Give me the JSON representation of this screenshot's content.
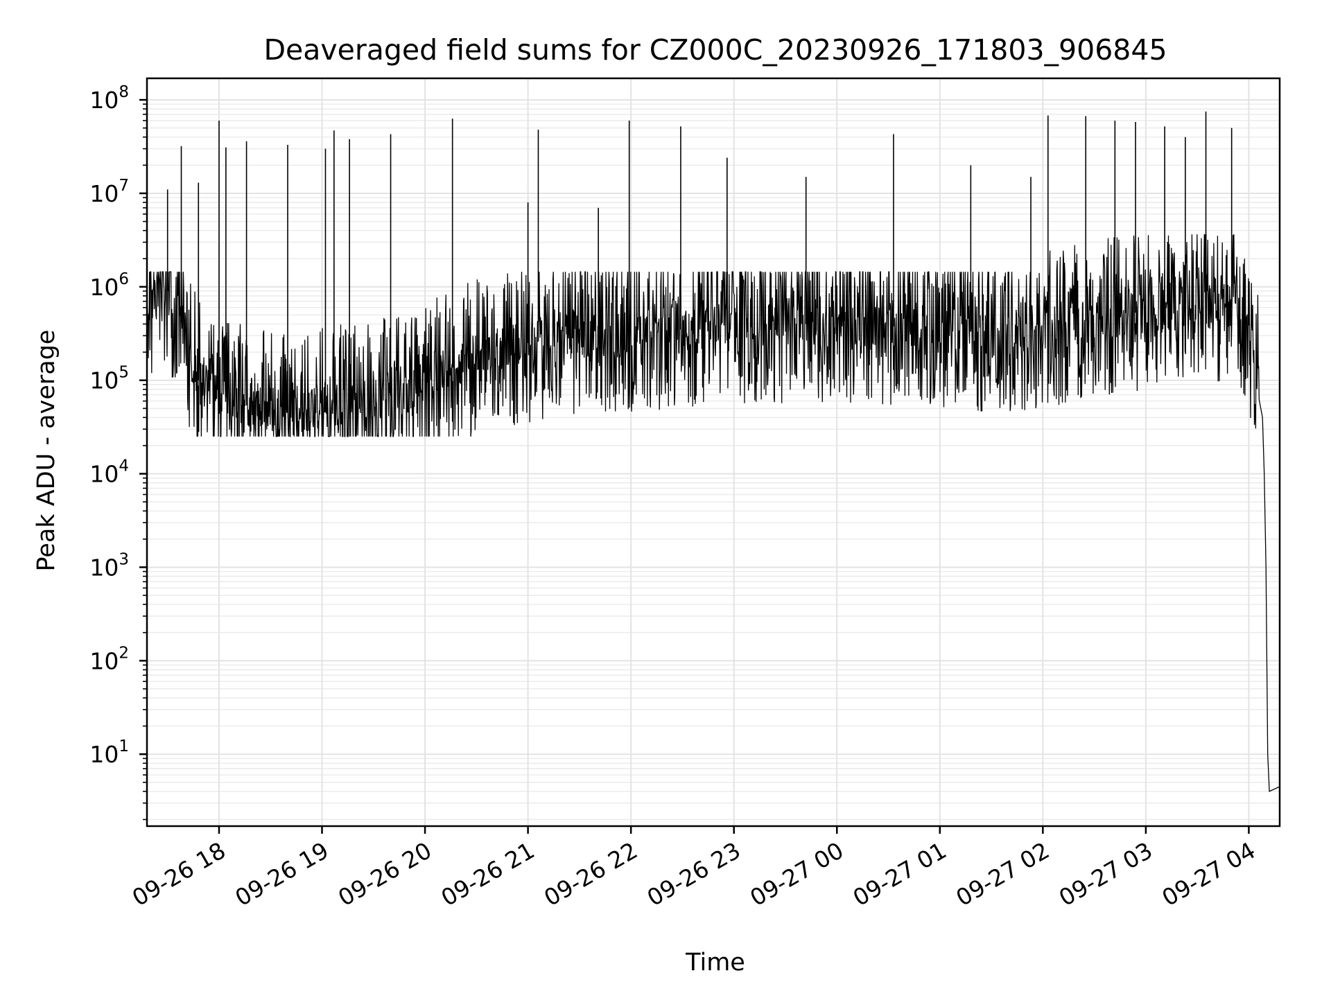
{
  "chart_data": {
    "type": "line",
    "title": "Deaveraged field sums for CZ000C_20230926_171803_906845",
    "xlabel": "Time",
    "ylabel": "Peak ADU - average",
    "yscale": "log",
    "grid": true,
    "xlim": [
      "2023-09-26 17:18",
      "2023-09-27 04:18"
    ],
    "ylim": [
      1.7,
      170000000
    ],
    "x_ticks": [
      {
        "value": "2023-09-26 18:00",
        "label": "09-26 18"
      },
      {
        "value": "2023-09-26 19:00",
        "label": "09-26 19"
      },
      {
        "value": "2023-09-26 20:00",
        "label": "09-26 20"
      },
      {
        "value": "2023-09-26 21:00",
        "label": "09-26 21"
      },
      {
        "value": "2023-09-26 22:00",
        "label": "09-26 22"
      },
      {
        "value": "2023-09-26 23:00",
        "label": "09-26 23"
      },
      {
        "value": "2023-09-27 00:00",
        "label": "09-27 00"
      },
      {
        "value": "2023-09-27 01:00",
        "label": "09-27 01"
      },
      {
        "value": "2023-09-27 02:00",
        "label": "09-27 02"
      },
      {
        "value": "2023-09-27 03:00",
        "label": "09-27 03"
      },
      {
        "value": "2023-09-27 04:00",
        "label": "09-27 04"
      }
    ],
    "y_ticks": [
      {
        "value": 10,
        "base": "10",
        "exp": "1"
      },
      {
        "value": 100,
        "base": "10",
        "exp": "2"
      },
      {
        "value": 1000,
        "base": "10",
        "exp": "3"
      },
      {
        "value": 10000,
        "base": "10",
        "exp": "4"
      },
      {
        "value": 100000,
        "base": "10",
        "exp": "5"
      },
      {
        "value": 1000000,
        "base": "10",
        "exp": "6"
      },
      {
        "value": 10000000,
        "base": "10",
        "exp": "7"
      },
      {
        "value": 100000000,
        "base": "10",
        "exp": "8"
      }
    ],
    "series": [
      {
        "color": "#000000",
        "points": [
          [
            "2023-09-26 17:18",
            500000
          ],
          [
            "2023-09-26 17:24",
            800000
          ],
          [
            "2023-09-26 17:30",
            900000
          ],
          [
            "2023-09-26 17:36",
            600000
          ],
          [
            "2023-09-26 17:42",
            200000
          ],
          [
            "2023-09-26 17:48",
            100000
          ],
          [
            "2023-09-26 17:54",
            80000
          ],
          [
            "2023-09-26 18:00",
            70000
          ],
          [
            "2023-09-26 18:10",
            60000
          ],
          [
            "2023-09-26 18:20",
            50000
          ],
          [
            "2023-09-26 18:30",
            48000
          ],
          [
            "2023-09-26 18:40",
            45000
          ],
          [
            "2023-09-26 18:50",
            50000
          ],
          [
            "2023-09-26 19:00",
            55000
          ],
          [
            "2023-09-26 19:15",
            60000
          ],
          [
            "2023-09-26 19:30",
            65000
          ],
          [
            "2023-09-26 19:45",
            70000
          ],
          [
            "2023-09-26 20:00",
            100000
          ],
          [
            "2023-09-26 20:30",
            180000
          ],
          [
            "2023-09-26 21:00",
            250000
          ],
          [
            "2023-09-26 21:30",
            300000
          ],
          [
            "2023-09-26 22:00",
            320000
          ],
          [
            "2023-09-26 22:30",
            350000
          ],
          [
            "2023-09-26 23:00",
            380000
          ],
          [
            "2023-09-26 23:30",
            400000
          ],
          [
            "2023-09-27 00:00",
            400000
          ],
          [
            "2023-09-27 00:30",
            380000
          ],
          [
            "2023-09-27 01:00",
            350000
          ],
          [
            "2023-09-27 01:30",
            320000
          ],
          [
            "2023-09-27 02:00",
            350000
          ],
          [
            "2023-09-27 02:30",
            450000
          ],
          [
            "2023-09-27 03:00",
            550000
          ],
          [
            "2023-09-27 03:30",
            700000
          ],
          [
            "2023-09-27 03:50",
            600000
          ],
          [
            "2023-09-27 04:00",
            300000
          ],
          [
            "2023-09-27 04:05",
            150000
          ],
          [
            "2023-09-27 04:08",
            40000
          ],
          [
            "2023-09-27 04:09",
            10000
          ],
          [
            "2023-09-27 04:10",
            1000
          ],
          [
            "2023-09-27 04:11",
            10
          ],
          [
            "2023-09-27 04:12",
            4
          ],
          [
            "2023-09-27 04:18",
            4.5
          ]
        ]
      }
    ],
    "spikes": [
      [
        "2023-09-26 17:30",
        11000000
      ],
      [
        "2023-09-26 17:38",
        32000000
      ],
      [
        "2023-09-26 17:48",
        13000000
      ],
      [
        "2023-09-26 18:00",
        60000000
      ],
      [
        "2023-09-26 18:04",
        31000000
      ],
      [
        "2023-09-26 18:16",
        36000000
      ],
      [
        "2023-09-26 18:40",
        33000000
      ],
      [
        "2023-09-26 19:02",
        30000000
      ],
      [
        "2023-09-26 19:07",
        47000000
      ],
      [
        "2023-09-26 19:16",
        38000000
      ],
      [
        "2023-09-26 19:40",
        43000000
      ],
      [
        "2023-09-26 20:16",
        63000000
      ],
      [
        "2023-09-26 21:06",
        48000000
      ],
      [
        "2023-09-26 21:00",
        8000000
      ],
      [
        "2023-09-26 21:41",
        7000000
      ],
      [
        "2023-09-26 21:59",
        60000000
      ],
      [
        "2023-09-26 22:29",
        52000000
      ],
      [
        "2023-09-26 22:56",
        24000000
      ],
      [
        "2023-09-26 23:42",
        15000000
      ],
      [
        "2023-09-27 00:33",
        43000000
      ],
      [
        "2023-09-27 01:18",
        20000000
      ],
      [
        "2023-09-27 01:53",
        15000000
      ],
      [
        "2023-09-27 02:03",
        68000000
      ],
      [
        "2023-09-27 02:25",
        67000000
      ],
      [
        "2023-09-27 02:42",
        60000000
      ],
      [
        "2023-09-27 02:54",
        58000000
      ],
      [
        "2023-09-27 03:11",
        52000000
      ],
      [
        "2023-09-27 03:23",
        40000000
      ],
      [
        "2023-09-27 03:35",
        75000000
      ],
      [
        "2023-09-27 03:50",
        50000000
      ]
    ]
  }
}
